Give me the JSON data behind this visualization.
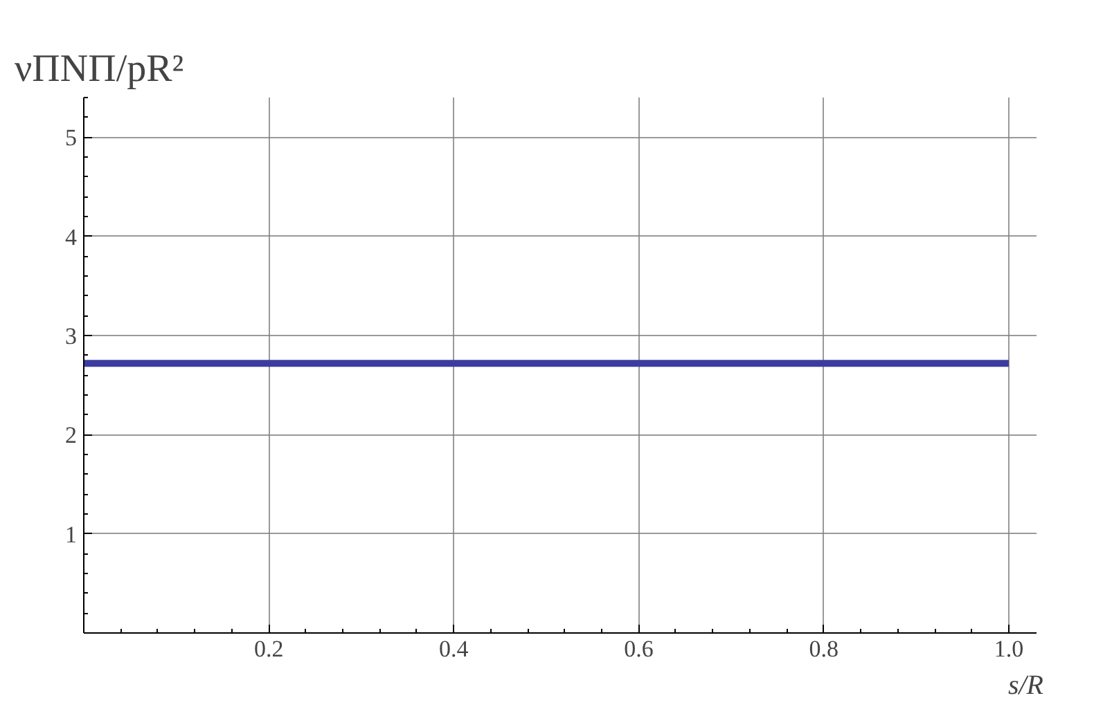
{
  "chart_data": {
    "type": "line",
    "xlabel": "s/R",
    "ylabel": "νΠNΠ/pR²",
    "x": [
      0,
      1.0
    ],
    "series": [
      {
        "color": "#3c3ca0",
        "values": [
          2.72,
          2.72
        ]
      }
    ],
    "xlim": [
      0,
      1.03
    ],
    "ylim": [
      0,
      5.4
    ],
    "xticks": [
      {
        "value": 0,
        "label": null
      },
      0.2,
      0.4,
      0.6,
      0.8,
      {
        "value": 1.0,
        "label": "1.0"
      }
    ],
    "yticks": [
      {
        "value": 0,
        "label": null
      },
      1,
      2,
      3,
      4,
      5
    ],
    "grid": true,
    "marker": "none",
    "line_style": "solid"
  }
}
